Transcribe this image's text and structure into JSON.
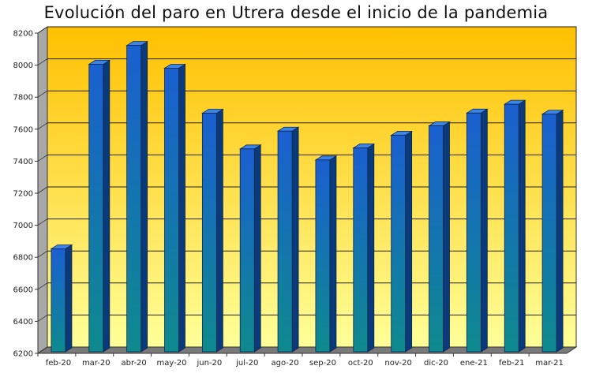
{
  "chart_data": {
    "type": "bar",
    "title": "Evolución del paro en Utrera desde el inicio de la pandemia",
    "xlabel": "",
    "ylabel": "",
    "categories": [
      "feb-20",
      "mar-20",
      "abr-20",
      "may-20",
      "jun-20",
      "jul-20",
      "ago-20",
      "sep-20",
      "oct-20",
      "nov-20",
      "dic-20",
      "ene-21",
      "feb-21",
      "mar-21"
    ],
    "values": [
      6843,
      7996,
      8113,
      7971,
      7690,
      7467,
      7578,
      7398,
      7473,
      7552,
      7611,
      7691,
      7746,
      7684
    ],
    "ylim": [
      6200,
      8200
    ],
    "yticks": [
      "6200",
      "6400",
      "6600",
      "6800",
      "7000",
      "7200",
      "7400",
      "7600",
      "7800",
      "8000",
      "8200"
    ],
    "grid": true,
    "legend": "none",
    "colors": {
      "bar_front_top": "#1a5fd0",
      "bar_front_bottom": "#0e8a8e",
      "bar_side": "#0a3a7a",
      "bar_top": "#3a86e8",
      "background_top": "#ffc000",
      "background_bottom": "#ffff99",
      "floor": "#7a7a7a",
      "wall_side": "#a8a8a8"
    }
  }
}
